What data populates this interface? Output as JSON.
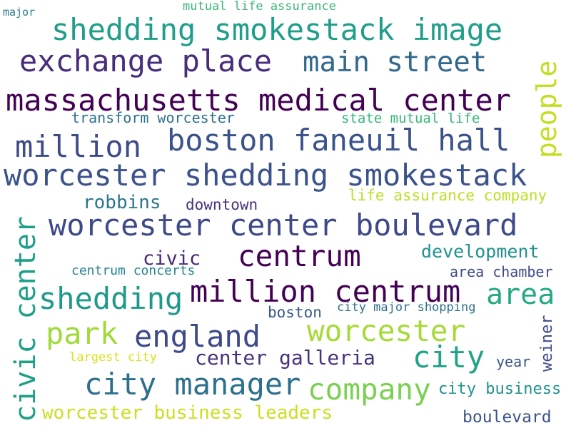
{
  "words": [
    {
      "text": "major",
      "color": "#2a7b8e"
    },
    {
      "text": "mutual life assurance",
      "color": "#3bb677"
    },
    {
      "text": "shedding smokestack image",
      "color": "#1f9e89"
    },
    {
      "text": "exchange place",
      "color": "#472d7b"
    },
    {
      "text": "main street",
      "color": "#31688e"
    },
    {
      "text": "people",
      "color": "#c2df23"
    },
    {
      "text": "massachusetts medical center",
      "color": "#440154"
    },
    {
      "text": "transform worcester",
      "color": "#2c728e"
    },
    {
      "text": "state mutual life",
      "color": "#35b779"
    },
    {
      "text": "million",
      "color": "#3e4a89"
    },
    {
      "text": "boston faneuil hall",
      "color": "#3b528b"
    },
    {
      "text": "worcester shedding smokestack",
      "color": "#3b528b"
    },
    {
      "text": "civic center",
      "color": "#1fa088"
    },
    {
      "text": "robbins",
      "color": "#2a768e"
    },
    {
      "text": "downtown",
      "color": "#46337e"
    },
    {
      "text": "life assurance company",
      "color": "#bddf26"
    },
    {
      "text": "worcester center boulevard",
      "color": "#3e4989"
    },
    {
      "text": "civic",
      "color": "#482878"
    },
    {
      "text": "centrum",
      "color": "#440154"
    },
    {
      "text": "development",
      "color": "#21918c"
    },
    {
      "text": "centrum concerts",
      "color": "#25858e"
    },
    {
      "text": "area chamber",
      "color": "#3e4a89"
    },
    {
      "text": "shedding",
      "color": "#1f9a8a"
    },
    {
      "text": "million centrum",
      "color": "#440154"
    },
    {
      "text": "area",
      "color": "#25ab82"
    },
    {
      "text": "boston",
      "color": "#38588c"
    },
    {
      "text": "city major shopping",
      "color": "#2d708e"
    },
    {
      "text": "park",
      "color": "#a0da39"
    },
    {
      "text": "england",
      "color": "#3e4a89"
    },
    {
      "text": "worcester",
      "color": "#a5db36"
    },
    {
      "text": "weiner",
      "color": "#3e4a89"
    },
    {
      "text": "largest city",
      "color": "#d8e219"
    },
    {
      "text": "center galleria",
      "color": "#46337e"
    },
    {
      "text": "city",
      "color": "#20a386"
    },
    {
      "text": "year",
      "color": "#3b528b"
    },
    {
      "text": "city manager",
      "color": "#2d708e"
    },
    {
      "text": "company",
      "color": "#7ad151"
    },
    {
      "text": "city business",
      "color": "#21918c"
    },
    {
      "text": "worcester business leaders",
      "color": "#c8e020"
    },
    {
      "text": "boulevard",
      "color": "#3b528b"
    }
  ]
}
